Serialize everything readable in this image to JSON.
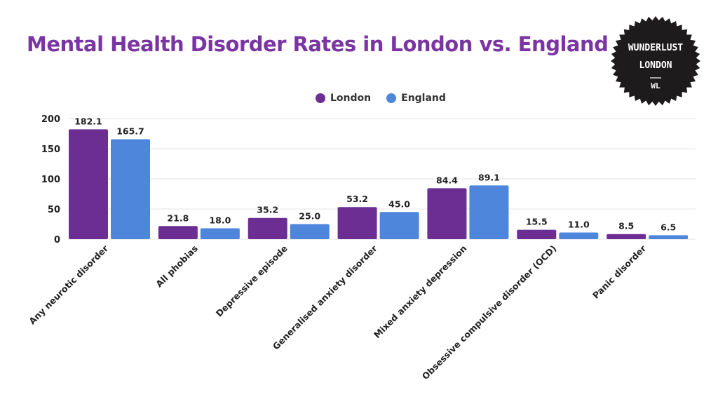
{
  "title": "Mental Health Disorder Rates in London vs. England",
  "logo": {
    "line1": "WUNDERLUST",
    "line2": "LONDON",
    "mark": "WL"
  },
  "colors": {
    "london": "#6d2e93",
    "england": "#4e86dc",
    "title": "#7a35a3",
    "badge": "#1d1b1b"
  },
  "chart_data": {
    "type": "bar",
    "categories": [
      "Any neurotic disorder",
      "All phobias",
      "Depressive episode",
      "Generalised anxiety disorder",
      "Mixed anxiety depression",
      "Obsessive compulsive disorder (OCD)",
      "Panic disorder"
    ],
    "series": [
      {
        "name": "London",
        "values": [
          182.1,
          21.8,
          35.2,
          53.2,
          84.4,
          15.5,
          8.5
        ],
        "labels": [
          "182.1",
          "21.8",
          "35.2",
          "53.2",
          "84.4",
          "15.5",
          "8.5"
        ]
      },
      {
        "name": "England",
        "values": [
          165.7,
          18.0,
          25.0,
          45.0,
          89.1,
          11.0,
          6.5
        ],
        "labels": [
          "165.7",
          "18.0",
          "25.0",
          "45.0",
          "89.1",
          "11.0",
          "6.5"
        ]
      }
    ],
    "yticks": [
      "0",
      "50",
      "100",
      "150",
      "200"
    ],
    "ylim": [
      0,
      200
    ],
    "grid": true,
    "legend": "top-center"
  }
}
